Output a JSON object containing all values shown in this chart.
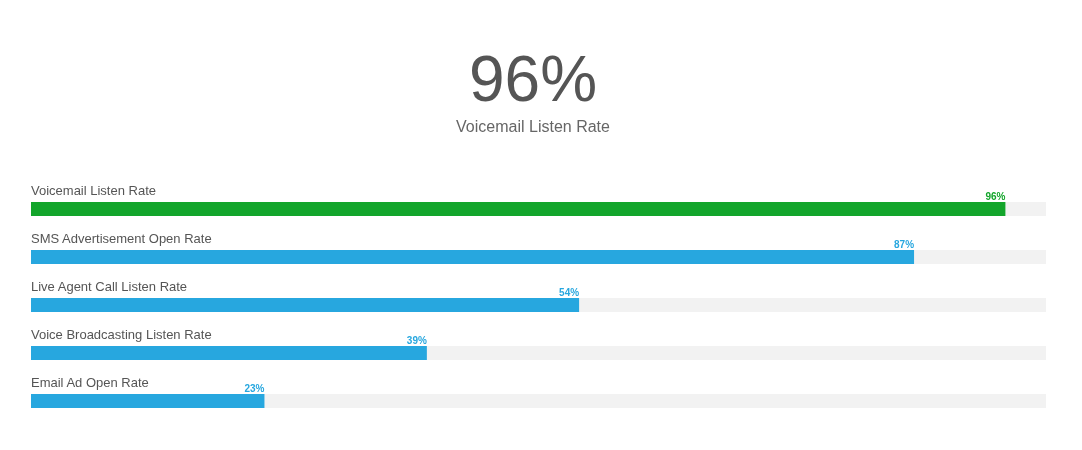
{
  "chart_data": {
    "type": "bar",
    "orientation": "horizontal",
    "title": "96%",
    "subtitle": "Voicemail Listen Rate",
    "categories": [
      "Voicemail Listen Rate",
      "SMS Advertisement Open Rate",
      "Live Agent Call Listen Rate",
      "Voice Broadcasting Listen Rate",
      "Email Ad Open Rate"
    ],
    "values": [
      96,
      87,
      54,
      39,
      23
    ],
    "colors": [
      "#13a52b",
      "#27a7df",
      "#27a7df",
      "#27a7df",
      "#27a7df"
    ],
    "value_labels": [
      "96%",
      "87%",
      "54%",
      "39%",
      "23%"
    ],
    "xlim": [
      0,
      100
    ]
  }
}
